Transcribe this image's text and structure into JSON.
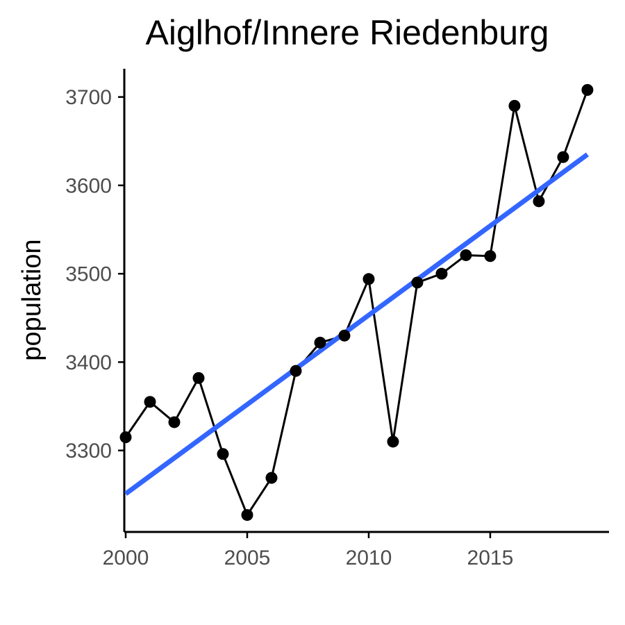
{
  "chart_data": {
    "type": "line",
    "title": "Aiglhof/Innere Riedenburg",
    "xlabel": "",
    "ylabel": "population",
    "xlim": [
      1999.9,
      2019.9
    ],
    "ylim": [
      3210,
      3730
    ],
    "x_ticks": [
      2000,
      2005,
      2010,
      2015
    ],
    "y_ticks": [
      3300,
      3400,
      3500,
      3600,
      3700
    ],
    "grid": false,
    "x": [
      2000,
      2001,
      2002,
      2003,
      2004,
      2005,
      2006,
      2007,
      2008,
      2009,
      2010,
      2011,
      2012,
      2013,
      2014,
      2015,
      2016,
      2017,
      2018,
      2019
    ],
    "series": [
      {
        "values": [
          3315,
          3355,
          3332,
          3382,
          3296,
          3227,
          3269,
          3390,
          3422,
          3430,
          3494,
          3310,
          3490,
          3500,
          3521,
          3520,
          3690,
          3582,
          3632,
          3708
        ]
      }
    ],
    "trend": {
      "x": [
        2000,
        2019
      ],
      "values": [
        3251,
        3635
      ]
    },
    "colors": {
      "series": "#000000",
      "trend": "#3366ff"
    }
  }
}
